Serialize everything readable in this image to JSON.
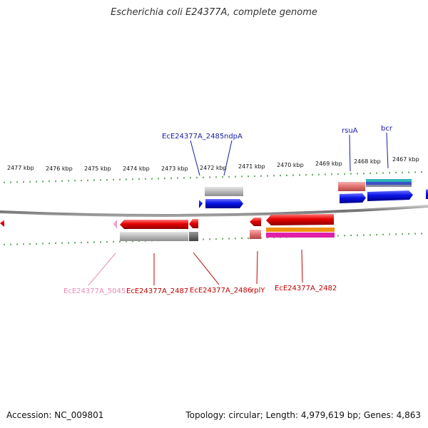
{
  "title": "Escherichia coli E24377A, complete genome",
  "footer": {
    "accession": "Accession: NC_009801",
    "summary": "Topology: circular; Length: 4,979,619 bp; Genes: 4,863"
  },
  "colors": {
    "backbone": "#7a7a7a",
    "tick": "#2e8b2e",
    "forward_gene": "#0a14e6",
    "reverse_gene": "#e60000",
    "forward_label": "#1a1aa6",
    "reverse_label": "#c00000",
    "pseudo_label": "#e98bb5"
  },
  "ticks": [
    {
      "label": "2477 kbp"
    },
    {
      "label": "2476 kbp"
    },
    {
      "label": "2475 kbp"
    },
    {
      "label": "2474 kbp"
    },
    {
      "label": "2473 kbp"
    },
    {
      "label": "2472 kbp"
    },
    {
      "label": "2471 kbp"
    },
    {
      "label": "2470 kbp"
    },
    {
      "label": "2469 kbp"
    },
    {
      "label": "2468 kbp"
    },
    {
      "label": "2467 kbp"
    }
  ],
  "labels": {
    "forward": [
      {
        "text": "EcE24377A_2485"
      },
      {
        "text": "ndpA"
      },
      {
        "text": "rsuA"
      },
      {
        "text": "bcr"
      }
    ],
    "reverse": [
      {
        "text": "EcE24377A_5045"
      },
      {
        "text": "EcE24377A_2487"
      },
      {
        "text": "EcE24377A_2486"
      },
      {
        "text": "rplY"
      },
      {
        "text": "EcE24377A_2482"
      }
    ]
  }
}
